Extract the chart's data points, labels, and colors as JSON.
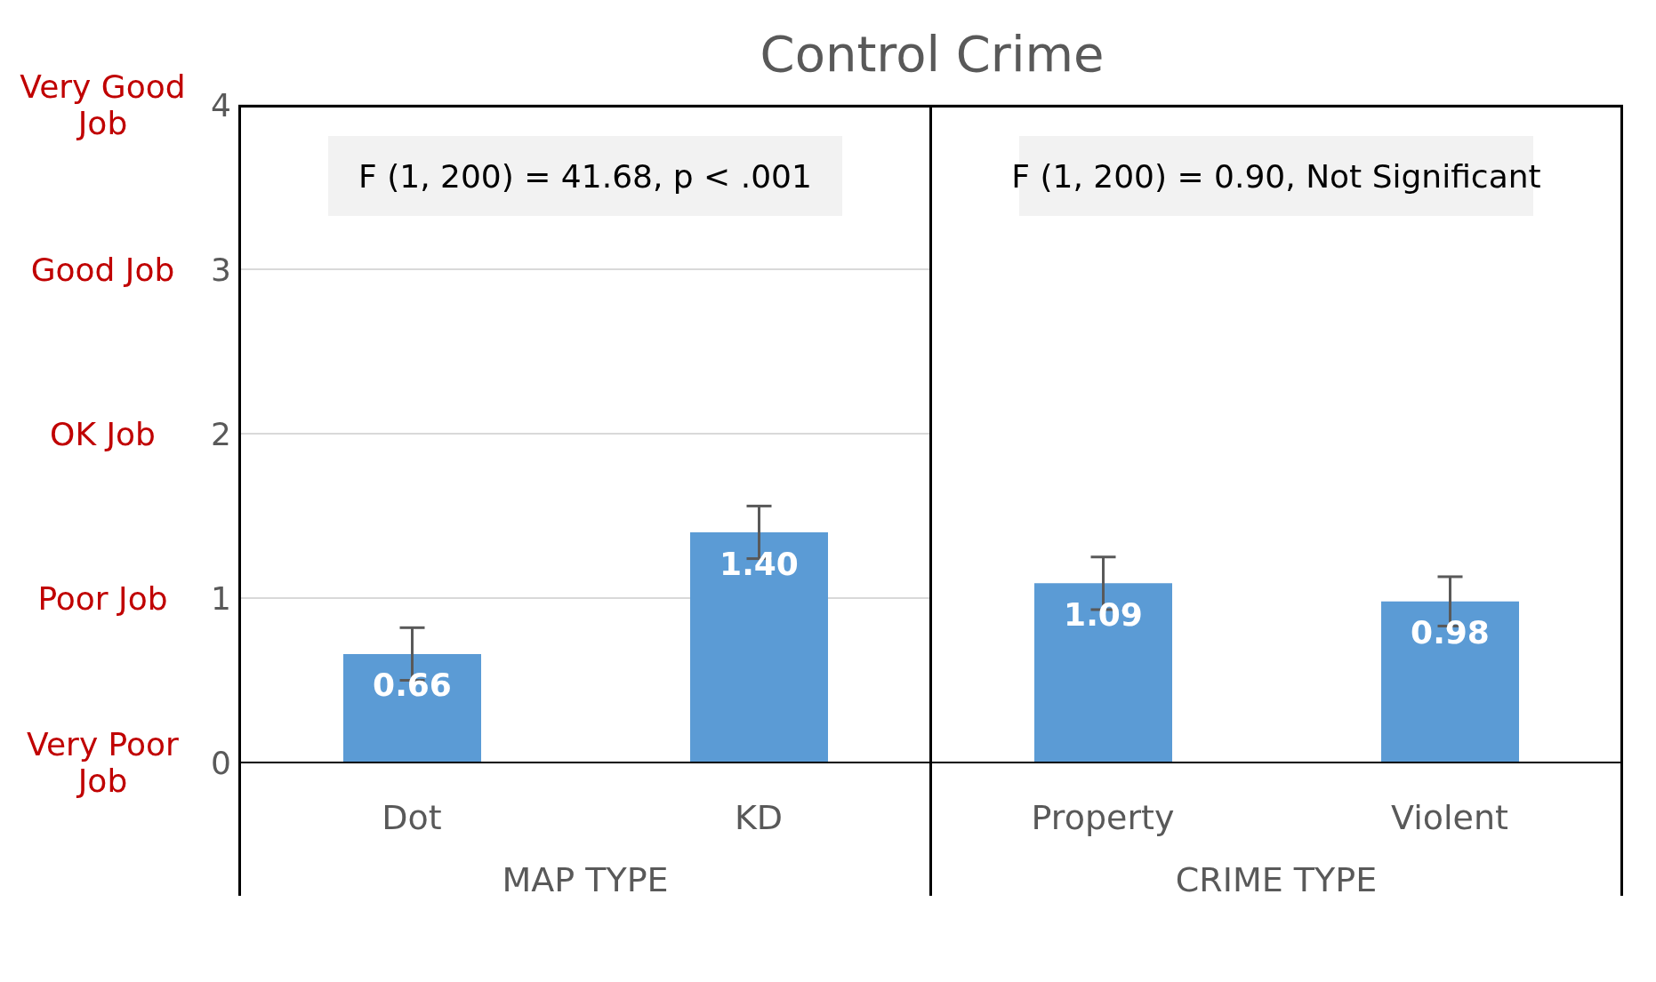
{
  "chart_data": [
    {
      "type": "bar",
      "title": "Control Crime",
      "categories": [
        "Dot",
        "KD"
      ],
      "values": [
        0.66,
        1.4
      ],
      "value_labels": [
        "0.66",
        "1.40"
      ],
      "errors": [
        0.16,
        0.16
      ],
      "color": "#5b9bd5",
      "ylim": [
        0,
        4
      ],
      "yticks": [
        0,
        1,
        2,
        3,
        4
      ],
      "grid": "y",
      "xlabel": "MAP TYPE",
      "annotations": [
        "F (1, 200) = 41.68, p < .001",
        "Very Good Job",
        "Good Job",
        "OK Job",
        "Poor Job",
        "Very Poor Job"
      ]
    },
    {
      "type": "bar",
      "categories": [
        "Property",
        "Violent"
      ],
      "values": [
        1.09,
        0.98
      ],
      "value_labels": [
        "1.09",
        "0.98"
      ],
      "errors": [
        0.16,
        0.15
      ],
      "color": "#5b9bd5",
      "ylim": [
        0,
        4
      ],
      "yticks": [
        0,
        1,
        2,
        3,
        4
      ],
      "grid": "y",
      "xlabel": "CRIME TYPE",
      "tick_labels": "x",
      "annotations": [
        "F (1, 200) = 0.90, Not Significant"
      ]
    }
  ]
}
